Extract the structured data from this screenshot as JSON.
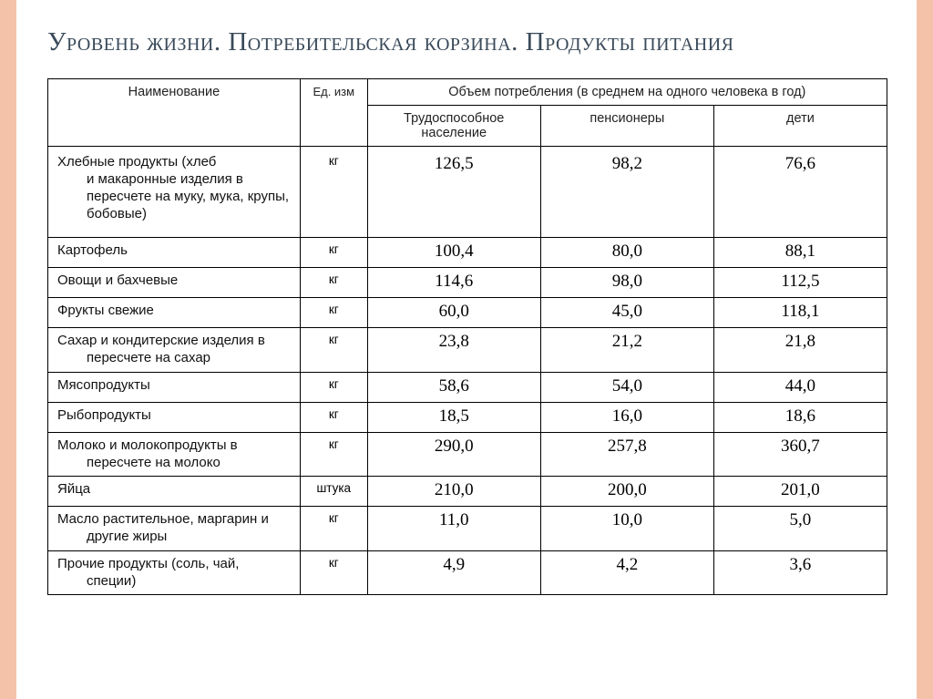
{
  "title": "Уровень жизни. Потребительская корзина. Продукты питания",
  "headers": {
    "name": "Наименование",
    "unit": "Ед. изм",
    "consumption": "Объем потребления (в среднем на одного человека в год)",
    "working": "Трудоспособное население",
    "pensioners": "пенсионеры",
    "children": "дети"
  },
  "rows": [
    {
      "name": "Хлебные продукты (хлеб и макаронные изделия в пересчете на муку, мука, крупы, бобовые)",
      "unit": "кг",
      "v1": "126,5",
      "v2": "98,2",
      "v3": "76,6",
      "hang": true,
      "tall": true
    },
    {
      "name": "Картофель",
      "unit": "кг",
      "v1": "100,4",
      "v2": "80,0",
      "v3": "88,1"
    },
    {
      "name": "Овощи и бахчевые",
      "unit": "кг",
      "v1": "114,6",
      "v2": "98,0",
      "v3": "112,5"
    },
    {
      "name": "Фрукты свежие",
      "unit": "кг",
      "v1": "60,0",
      "v2": "45,0",
      "v3": "118,1"
    },
    {
      "name": "Сахар и кондитерские изделия в пересчете на сахар",
      "unit": "кг",
      "v1": "23,8",
      "v2": "21,2",
      "v3": "21,8",
      "hang": true
    },
    {
      "name": "Мясопродукты",
      "unit": "кг",
      "v1": "58,6",
      "v2": "54,0",
      "v3": "44,0"
    },
    {
      "name": "Рыбопродукты",
      "unit": "кг",
      "v1": "18,5",
      "v2": "16,0",
      "v3": "18,6"
    },
    {
      "name": "Молоко и молокопродукты в пересчете на молоко",
      "unit": "кг",
      "v1": "290,0",
      "v2": "257,8",
      "v3": "360,7",
      "hang": true
    },
    {
      "name": "Яйца",
      "unit": "штука",
      "v1": "210,0",
      "v2": "200,0",
      "v3": "201,0"
    },
    {
      "name": "Масло растительное, маргарин и другие жиры",
      "unit": "кг",
      "v1": "11,0",
      "v2": "10,0",
      "v3": "5,0",
      "hang": true
    },
    {
      "name": "Прочие продукты (соль, чай, специи)",
      "unit": "кг",
      "v1": "4,9",
      "v2": "4,2",
      "v3": "3,6",
      "hang": true
    }
  ]
}
